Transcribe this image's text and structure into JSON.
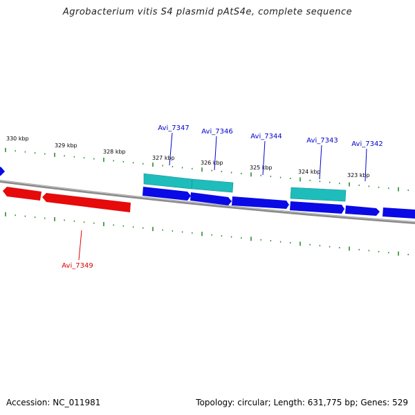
{
  "title": "Agrobacterium vitis S4 plasmid pAtS4e, complete sequence",
  "footer": {
    "accession": "Accession: NC_011981",
    "stats": "Topology: circular; Length: 631,775 bp; Genes: 529"
  },
  "map": {
    "scale_labels": [
      "330 kbp",
      "329 kbp",
      "328 kbp",
      "327 kbp",
      "326 kbp",
      "325 kbp",
      "324 kbp",
      "323 kbp"
    ],
    "gene_labels": [
      {
        "text": "Avi_7347",
        "strand": "forward"
      },
      {
        "text": "Avi_7346",
        "strand": "forward"
      },
      {
        "text": "Avi_7344",
        "strand": "forward"
      },
      {
        "text": "Avi_7343",
        "strand": "forward"
      },
      {
        "text": "Avi_7342",
        "strand": "forward"
      },
      {
        "text": "Avi_7349",
        "strand": "reverse"
      }
    ],
    "colors": {
      "forward_gene": "#0000e0",
      "reverse_gene": "#e00000",
      "feature": "#20c8c8",
      "backbone": "#808080",
      "tick": "#2a8a2a",
      "label_forward": "#0000cc",
      "label_reverse": "#dd0000"
    }
  }
}
